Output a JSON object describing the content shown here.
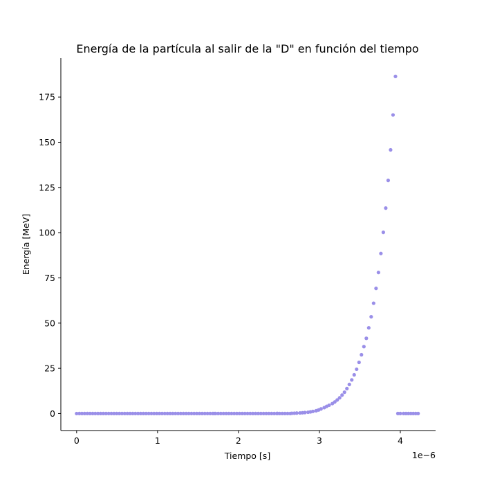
{
  "chart_data": {
    "type": "scatter",
    "title": "Energía de la partícula al salir de la \"D\" en función del tiempo",
    "xlabel": "Tiempo [s]",
    "ylabel": "Energía [MeV]",
    "x_offset_label": "1e−6",
    "xlim": [
      -1.95e-07,
      4.436e-06
    ],
    "ylim": [
      -9.4,
      196.5
    ],
    "x_ticks": [
      {
        "value": 0,
        "label": "0"
      },
      {
        "value": 1e-06,
        "label": "1"
      },
      {
        "value": 2e-06,
        "label": "2"
      },
      {
        "value": 3e-06,
        "label": "3"
      },
      {
        "value": 4e-06,
        "label": "4"
      }
    ],
    "y_ticks": [
      {
        "value": 0,
        "label": "0"
      },
      {
        "value": 25,
        "label": "25"
      },
      {
        "value": 50,
        "label": "50"
      },
      {
        "value": 75,
        "label": "75"
      },
      {
        "value": 100,
        "label": "100"
      },
      {
        "value": 125,
        "label": "125"
      },
      {
        "value": 150,
        "label": "150"
      },
      {
        "value": 175,
        "label": "175"
      }
    ],
    "grid": false,
    "marker_color": "#9a8fe8",
    "series": [
      {
        "x": [
          0.0,
          3.4e-08,
          1.7e-06,
          2.48e-06,
          2.66e-06,
          2.69e-06,
          2.72e-06,
          2.76e-06,
          2.79e-06,
          2.82e-06,
          2.86e-06,
          2.89e-06,
          2.92e-06,
          2.96e-06,
          2.99e-06,
          3.02e-06,
          3.06e-06,
          3.09e-06,
          3.12e-06,
          3.16e-06,
          3.19e-06,
          3.22e-06,
          3.25e-06,
          3.28e-06,
          3.31e-06,
          3.34e-06,
          3.37e-06,
          3.4e-06,
          3.43e-06,
          3.46e-06,
          3.49e-06,
          3.52e-06,
          3.55e-06,
          3.58e-06,
          3.61e-06,
          3.64e-06,
          3.67e-06,
          3.7e-06,
          3.73e-06,
          3.76e-06,
          3.79e-06,
          3.82e-06,
          3.85e-06,
          3.88e-06,
          3.91e-06,
          3.94e-06,
          3.97e-06,
          4e-06,
          4.04e-06,
          4.07e-06,
          4.1e-06,
          4.13e-06,
          4.16e-06,
          4.19e-06,
          4.22e-06
        ],
        "y": [
          0.0,
          0.03,
          0.05,
          0.08,
          0.15,
          0.2,
          0.26,
          0.33,
          0.43,
          0.56,
          0.72,
          0.93,
          1.2,
          1.55,
          1.99,
          2.55,
          3.27,
          3.98,
          4.6,
          5.5,
          6.4,
          7.5,
          8.7,
          10.2,
          11.8,
          13.8,
          16.1,
          18.6,
          21.4,
          24.5,
          28.3,
          32.5,
          37.0,
          41.6,
          47.4,
          53.5,
          61.0,
          69.2,
          78.0,
          88.5,
          100.2,
          113.6,
          128.9,
          145.8,
          165.1,
          186.4,
          0.03,
          0.03,
          0.03,
          0.03,
          0.03,
          0.03,
          0.03,
          0.03,
          0.03
        ]
      }
    ]
  }
}
